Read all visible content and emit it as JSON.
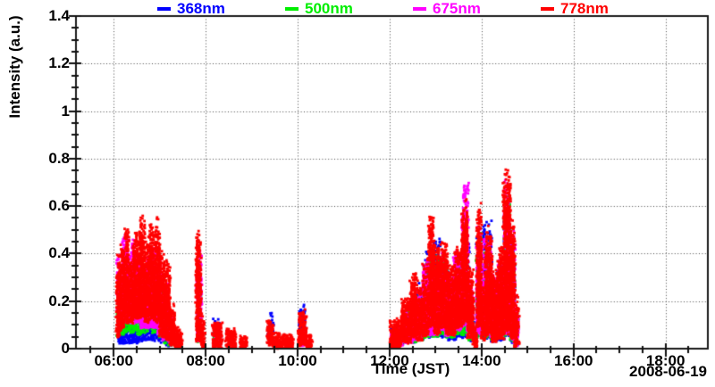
{
  "chart_data": {
    "type": "scatter",
    "title": "",
    "xlabel": "Time (JST)",
    "ylabel": "Intensity (a.u.)",
    "date_annotation": "2008-06-19",
    "legend_position": "top-center",
    "grid": true,
    "grid_style": "dotted",
    "x_axis": {
      "start_hour": 5.18,
      "end_hour": 18.92,
      "major_tick_hours": [
        6,
        8,
        10,
        12,
        14,
        16,
        18
      ],
      "major_ticks": [
        "06:00",
        "08:00",
        "10:00",
        "12:00",
        "14:00",
        "16:00",
        "18:00"
      ],
      "minor_tick_interval_hours": 0.5
    },
    "y_axis": {
      "min": 0,
      "max": 1.4,
      "major_tick_values": [
        0,
        0.2,
        0.4,
        0.6,
        0.8,
        1,
        1.2,
        1.4
      ],
      "major_tick_labels": [
        "0",
        "0.2",
        "0.4",
        "0.6",
        "0.8",
        "1",
        "1.2",
        "1.4"
      ],
      "minor_tick_interval": 0.05
    },
    "series": [
      {
        "name": "368nm",
        "color": "#0000ff",
        "density": 0.55,
        "bursts": [
          [
            6.1,
            6.25,
            0.02,
            0.12
          ],
          [
            6.25,
            6.4,
            0.02,
            0.15
          ],
          [
            6.4,
            6.55,
            0.02,
            0.13
          ],
          [
            6.55,
            6.7,
            0.03,
            0.17
          ],
          [
            6.7,
            6.88,
            0.03,
            0.2
          ],
          [
            6.88,
            7.02,
            0.03,
            0.22
          ],
          [
            7.02,
            7.12,
            0.02,
            0.16
          ],
          [
            7.12,
            7.25,
            0.01,
            0.09
          ],
          [
            7.82,
            7.9,
            0.02,
            0.17
          ],
          [
            8.18,
            8.32,
            0.01,
            0.13
          ],
          [
            9.37,
            9.47,
            0.02,
            0.16
          ],
          [
            10.04,
            10.16,
            0.02,
            0.19
          ],
          [
            12.04,
            12.28,
            0.01,
            0.1
          ],
          [
            12.35,
            12.58,
            0.02,
            0.2
          ],
          [
            12.58,
            12.75,
            0.03,
            0.28
          ],
          [
            12.75,
            12.95,
            0.04,
            0.42
          ],
          [
            12.95,
            13.12,
            0.04,
            0.48
          ],
          [
            13.12,
            13.28,
            0.04,
            0.42
          ],
          [
            13.28,
            13.45,
            0.03,
            0.32
          ],
          [
            13.45,
            13.62,
            0.04,
            0.4
          ],
          [
            13.62,
            13.72,
            0.04,
            0.5
          ],
          [
            13.72,
            13.82,
            0.02,
            0.25
          ],
          [
            13.9,
            14.02,
            0.04,
            0.52
          ],
          [
            14.05,
            14.22,
            0.03,
            0.55
          ],
          [
            14.22,
            14.35,
            0.02,
            0.3
          ],
          [
            14.35,
            14.5,
            0.03,
            0.35
          ],
          [
            14.5,
            14.62,
            0.04,
            0.6
          ],
          [
            14.62,
            14.72,
            0.02,
            0.45
          ],
          [
            14.72,
            14.78,
            0.01,
            0.15
          ]
        ]
      },
      {
        "name": "500nm",
        "color": "#00ee00",
        "density": 0.6,
        "bursts": [
          [
            6.08,
            6.22,
            0.05,
            0.25
          ],
          [
            6.22,
            6.35,
            0.06,
            0.33
          ],
          [
            6.35,
            6.5,
            0.06,
            0.3
          ],
          [
            6.5,
            6.65,
            0.05,
            0.28
          ],
          [
            6.65,
            6.8,
            0.06,
            0.35
          ],
          [
            6.8,
            6.95,
            0.06,
            0.33
          ],
          [
            6.95,
            7.08,
            0.04,
            0.28
          ],
          [
            7.08,
            7.2,
            0.02,
            0.18
          ],
          [
            7.2,
            7.3,
            0.01,
            0.1
          ],
          [
            7.82,
            7.89,
            0.02,
            0.32
          ],
          [
            8.18,
            8.3,
            0.01,
            0.08
          ],
          [
            10.05,
            10.14,
            0.01,
            0.1
          ],
          [
            12.05,
            12.28,
            0.01,
            0.08
          ],
          [
            12.35,
            12.58,
            0.02,
            0.18
          ],
          [
            12.58,
            12.72,
            0.03,
            0.25
          ],
          [
            12.75,
            12.92,
            0.04,
            0.38
          ],
          [
            12.92,
            13.1,
            0.04,
            0.42
          ],
          [
            13.1,
            13.25,
            0.05,
            0.4
          ],
          [
            13.25,
            13.42,
            0.04,
            0.3
          ],
          [
            13.42,
            13.6,
            0.05,
            0.4
          ],
          [
            13.6,
            13.7,
            0.05,
            0.55
          ],
          [
            13.7,
            13.8,
            0.03,
            0.28
          ],
          [
            13.9,
            14.0,
            0.04,
            0.5
          ],
          [
            14.05,
            14.2,
            0.04,
            0.45
          ],
          [
            14.2,
            14.35,
            0.03,
            0.3
          ],
          [
            14.35,
            14.5,
            0.04,
            0.38
          ],
          [
            14.5,
            14.62,
            0.05,
            0.65
          ],
          [
            14.62,
            14.72,
            0.02,
            0.45
          ],
          [
            14.72,
            14.78,
            0.01,
            0.15
          ]
        ]
      },
      {
        "name": "675nm",
        "color": "#ff00ff",
        "density": 0.85,
        "bursts": [
          [
            6.08,
            6.2,
            0.08,
            0.42
          ],
          [
            6.2,
            6.33,
            0.1,
            0.5
          ],
          [
            6.33,
            6.45,
            0.1,
            0.47
          ],
          [
            6.45,
            6.58,
            0.1,
            0.43
          ],
          [
            6.58,
            6.7,
            0.08,
            0.38
          ],
          [
            6.7,
            6.82,
            0.08,
            0.42
          ],
          [
            6.82,
            6.95,
            0.08,
            0.46
          ],
          [
            6.95,
            7.05,
            0.05,
            0.38
          ],
          [
            7.05,
            7.18,
            0.03,
            0.3
          ],
          [
            7.18,
            7.3,
            0.02,
            0.15
          ],
          [
            7.82,
            7.9,
            0.02,
            0.44
          ],
          [
            8.18,
            8.28,
            0.01,
            0.06
          ],
          [
            10.05,
            10.15,
            0.01,
            0.08
          ],
          [
            12.05,
            12.28,
            0.01,
            0.09
          ],
          [
            12.32,
            12.52,
            0.02,
            0.16
          ],
          [
            12.52,
            12.68,
            0.03,
            0.26
          ],
          [
            12.72,
            12.9,
            0.05,
            0.4
          ],
          [
            12.9,
            13.05,
            0.05,
            0.35
          ],
          [
            13.05,
            13.22,
            0.07,
            0.42
          ],
          [
            13.22,
            13.4,
            0.05,
            0.33
          ],
          [
            13.4,
            13.58,
            0.07,
            0.42
          ],
          [
            13.58,
            13.7,
            0.08,
            0.7
          ],
          [
            13.7,
            13.8,
            0.04,
            0.3
          ],
          [
            13.9,
            14.02,
            0.05,
            0.55
          ],
          [
            14.05,
            14.2,
            0.05,
            0.48
          ],
          [
            14.2,
            14.32,
            0.03,
            0.33
          ],
          [
            14.35,
            14.5,
            0.05,
            0.4
          ],
          [
            14.5,
            14.62,
            0.05,
            0.72
          ],
          [
            14.62,
            14.72,
            0.03,
            0.5
          ],
          [
            14.72,
            14.79,
            0.01,
            0.2
          ]
        ]
      },
      {
        "name": "778nm",
        "color": "#ff0000",
        "density": 1.0,
        "bursts": [
          [
            6.07,
            6.14,
            0.04,
            0.42
          ],
          [
            6.14,
            6.22,
            0.08,
            0.47
          ],
          [
            6.22,
            6.33,
            0.1,
            0.52
          ],
          [
            6.33,
            6.43,
            0.1,
            0.45
          ],
          [
            6.43,
            6.55,
            0.12,
            0.5
          ],
          [
            6.55,
            6.68,
            0.12,
            0.57
          ],
          [
            6.68,
            6.78,
            0.1,
            0.46
          ],
          [
            6.78,
            6.9,
            0.12,
            0.55
          ],
          [
            6.9,
            7.0,
            0.1,
            0.57
          ],
          [
            7.0,
            7.1,
            0.04,
            0.45
          ],
          [
            7.1,
            7.22,
            0.03,
            0.38
          ],
          [
            7.22,
            7.32,
            0.01,
            0.2
          ],
          [
            7.32,
            7.48,
            0.0,
            0.1
          ],
          [
            7.8,
            7.9,
            0.02,
            0.5
          ],
          [
            7.9,
            7.97,
            0.0,
            0.15
          ],
          [
            8.15,
            8.35,
            0.0,
            0.12
          ],
          [
            8.45,
            8.65,
            0.0,
            0.09
          ],
          [
            8.75,
            8.9,
            0.0,
            0.06
          ],
          [
            9.35,
            9.48,
            0.01,
            0.14
          ],
          [
            9.48,
            9.9,
            0.0,
            0.07
          ],
          [
            10.02,
            10.18,
            0.01,
            0.17
          ],
          [
            10.18,
            10.32,
            0.0,
            0.08
          ],
          [
            12.02,
            12.25,
            0.0,
            0.13
          ],
          [
            12.25,
            12.45,
            0.02,
            0.22
          ],
          [
            12.45,
            12.6,
            0.04,
            0.33
          ],
          [
            12.6,
            12.72,
            0.03,
            0.26
          ],
          [
            12.72,
            12.85,
            0.05,
            0.4
          ],
          [
            12.85,
            12.98,
            0.08,
            0.57
          ],
          [
            12.98,
            13.1,
            0.05,
            0.45
          ],
          [
            13.1,
            13.25,
            0.08,
            0.46
          ],
          [
            13.25,
            13.42,
            0.05,
            0.38
          ],
          [
            13.42,
            13.58,
            0.08,
            0.45
          ],
          [
            13.58,
            13.7,
            0.1,
            0.66
          ],
          [
            13.7,
            13.82,
            0.04,
            0.35
          ],
          [
            13.82,
            13.9,
            0.0,
            0.1
          ],
          [
            13.9,
            14.0,
            0.08,
            0.64
          ],
          [
            14.0,
            14.08,
            0.03,
            0.3
          ],
          [
            14.08,
            14.22,
            0.05,
            0.52
          ],
          [
            14.22,
            14.35,
            0.02,
            0.35
          ],
          [
            14.35,
            14.48,
            0.03,
            0.45
          ],
          [
            14.48,
            14.62,
            0.05,
            0.77
          ],
          [
            14.62,
            14.72,
            0.03,
            0.55
          ],
          [
            14.72,
            14.8,
            0.0,
            0.25
          ]
        ]
      }
    ]
  }
}
